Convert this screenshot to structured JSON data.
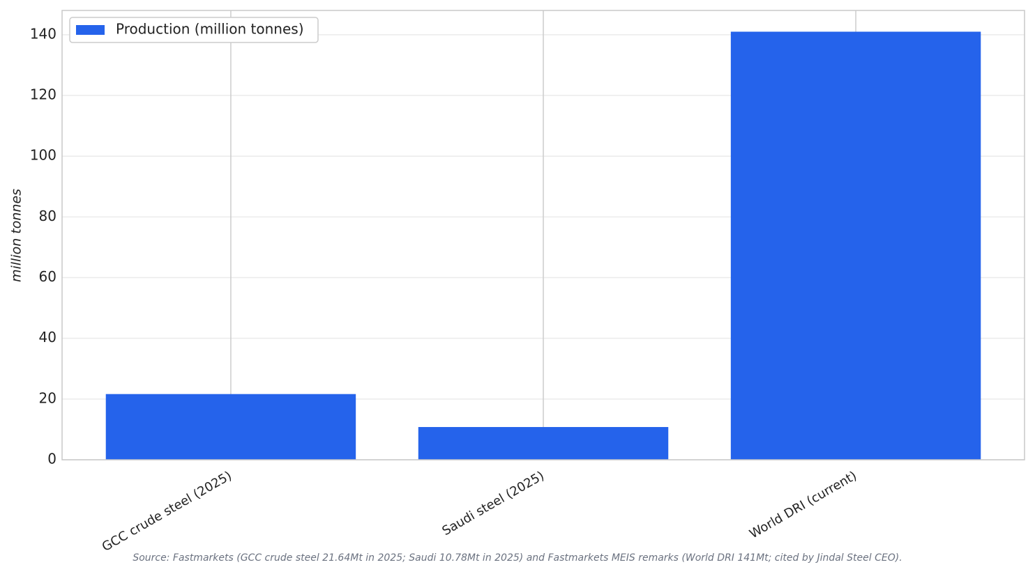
{
  "chart_data": {
    "type": "bar",
    "ylabel": "million tonnes",
    "categories": [
      "GCC crude steel (2025)",
      "Saudi steel (2025)",
      "World DRI (current)"
    ],
    "series": [
      {
        "name": "Production (million tonnes)",
        "color": "#2563eb",
        "values": [
          21.64,
          10.78,
          141
        ]
      }
    ],
    "ylim": [
      0,
      148
    ],
    "yticks": [
      0,
      20,
      40,
      60,
      80,
      100,
      120,
      140
    ],
    "grid": true,
    "legend": "upper left",
    "source": "Source: Fastmarkets (GCC crude steel 21.64Mt in 2025; Saudi 10.78Mt in 2025) and Fastmarkets MEIS remarks (World DRI 141Mt; cited by Jindal Steel CEO)."
  }
}
